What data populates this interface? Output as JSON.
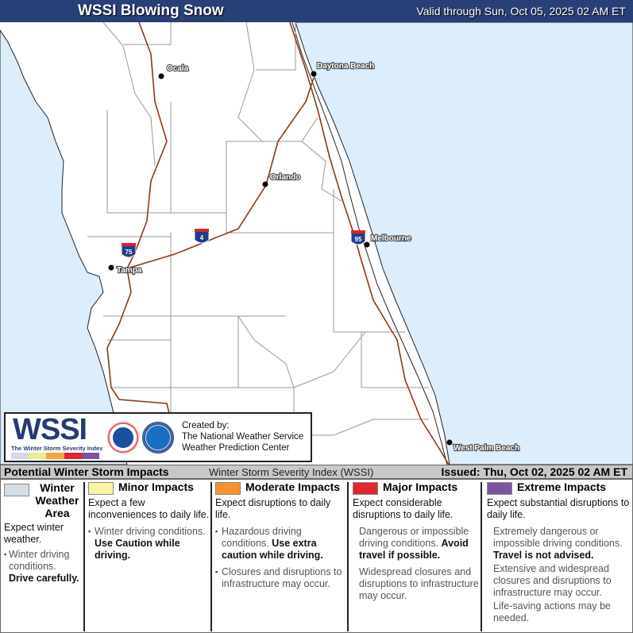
{
  "header": {
    "title": "WSSI Blowing Snow",
    "valid": "Valid through Sun, Oct 05, 2025 02 AM ET"
  },
  "map": {
    "colors": {
      "ocean": "#dcedfb",
      "land": "#ffffff",
      "interstate": "#8a3a14",
      "county": "#999999"
    },
    "cities": [
      {
        "name": "Ocala"
      },
      {
        "name": "Daytona Beach"
      },
      {
        "name": "Orlando"
      },
      {
        "name": "Melbourne"
      },
      {
        "name": "Tampa"
      },
      {
        "name": "West Palm Beach"
      }
    ],
    "shields": [
      "75",
      "4",
      "95"
    ]
  },
  "logo": {
    "wssi": "WSSI",
    "tagline": "The Winter Storm Severity Index",
    "created_by": "Created by:",
    "org1": "The National Weather Service",
    "org2": "Weather Prediction Center",
    "bar_colors": [
      "#d4d8e8",
      "#ecec90",
      "#f7a23a",
      "#e5232f",
      "#7b52a4"
    ]
  },
  "footer": {
    "left": "Potential Winter Storm Impacts",
    "middle": "Winter Storm Severity Index (WSSI)",
    "issued": "Issued: Thu, Oct 02, 2025 02 AM ET"
  },
  "legend": [
    {
      "label": "Winter Weather Area",
      "color": "#d3dde6",
      "expect": "Expect winter weather.",
      "b1": "Winter driving conditions.",
      "b1bold": "Drive carefully."
    },
    {
      "label": "Minor Impacts",
      "color": "#f8f4a3",
      "expect": "Expect a few inconveniences to daily life.",
      "b1": "Winter driving conditions.",
      "b1bold": "Use Caution while driving."
    },
    {
      "label": "Moderate Impacts",
      "color": "#f7922f",
      "expect": "Expect disruptions to daily life.",
      "b1": "Hazardous driving conditions.",
      "b1bold": "Use extra caution while driving.",
      "b2": "Closures and disruptions to infrastructure may occur."
    },
    {
      "label": "Major Impacts",
      "color": "#e4252f",
      "expect": "Expect considerable disruptions to daily life.",
      "b1": "Dangerous or impossible driving conditions.",
      "b1bold": "Avoid travel if possible.",
      "b2": "Widespread closures and disruptions to infrastructure may occur."
    },
    {
      "label": "Extreme Impacts",
      "color": "#7b52a4",
      "expect": "Expect substantial disruptions to daily life.",
      "b1": "Extremely dangerous or impossible driving conditions.",
      "b1bold": "Travel is not advised.",
      "b2": "Extensive and widespread closures and disruptions to infrastructure may occur.",
      "b3": "Life-saving actions may be needed."
    }
  ]
}
